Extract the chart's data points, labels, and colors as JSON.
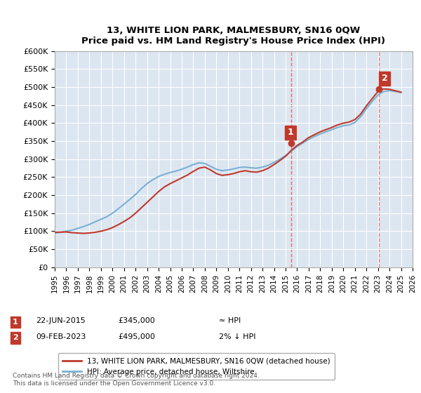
{
  "title": "13, WHITE LION PARK, MALMESBURY, SN16 0QW",
  "subtitle": "Price paid vs. HM Land Registry's House Price Index (HPI)",
  "background_color": "#dce6f1",
  "plot_bg_color": "#dce6f1",
  "ylabel_ticks": [
    "£0",
    "£50K",
    "£100K",
    "£150K",
    "£200K",
    "£250K",
    "£300K",
    "£350K",
    "£400K",
    "£450K",
    "£500K",
    "£550K",
    "£600K"
  ],
  "ytick_values": [
    0,
    50000,
    100000,
    150000,
    200000,
    250000,
    300000,
    350000,
    400000,
    450000,
    500000,
    550000,
    600000
  ],
  "ylim": [
    0,
    600000
  ],
  "xlim_start": 1995,
  "xlim_end": 2026,
  "xtick_years": [
    1995,
    1996,
    1997,
    1998,
    1999,
    2000,
    2001,
    2002,
    2003,
    2004,
    2005,
    2006,
    2007,
    2008,
    2009,
    2010,
    2011,
    2012,
    2013,
    2014,
    2015,
    2016,
    2017,
    2018,
    2019,
    2020,
    2021,
    2022,
    2023,
    2024,
    2025,
    2026
  ],
  "hpi_color": "#7ab0d4",
  "price_color": "#c0392b",
  "marker_color": "#c0392b",
  "vline_color": "#e74c3c",
  "annotation_box_color": "#c0392b",
  "legend_box_color": "#ffffff",
  "footnote": "Contains HM Land Registry data © Crown copyright and database right 2024.\nThis data is licensed under the Open Government Licence v3.0.",
  "legend_line1": "13, WHITE LION PARK, MALMESBURY, SN16 0QW (detached house)",
  "legend_line2": "HPI: Average price, detached house, Wiltshire",
  "annotation1_label": "1",
  "annotation1_date": "22-JUN-2015",
  "annotation1_price": "£345,000",
  "annotation1_hpi": "≈ HPI",
  "annotation1_year": 2015.47,
  "annotation1_value": 345000,
  "annotation2_label": "2",
  "annotation2_date": "09-FEB-2023",
  "annotation2_price": "£495,000",
  "annotation2_hpi": "2% ↓ HPI",
  "annotation2_year": 2023.11,
  "annotation2_value": 495000,
  "hpi_x": [
    1995,
    1995.5,
    1996,
    1996.5,
    1997,
    1997.5,
    1998,
    1998.5,
    1999,
    1999.5,
    2000,
    2000.5,
    2001,
    2001.5,
    2002,
    2002.5,
    2003,
    2003.5,
    2004,
    2004.5,
    2005,
    2005.5,
    2006,
    2006.5,
    2007,
    2007.5,
    2008,
    2008.5,
    2009,
    2009.5,
    2010,
    2010.5,
    2011,
    2011.5,
    2012,
    2012.5,
    2013,
    2013.5,
    2014,
    2014.5,
    2015,
    2015.5,
    2016,
    2016.5,
    2017,
    2017.5,
    2018,
    2018.5,
    2019,
    2019.5,
    2020,
    2020.5,
    2021,
    2021.5,
    2022,
    2022.5,
    2023,
    2023.5,
    2024,
    2024.5,
    2025
  ],
  "hpi_y": [
    95000,
    97000,
    100000,
    103000,
    108000,
    113000,
    119000,
    126000,
    133000,
    140000,
    150000,
    162000,
    175000,
    188000,
    202000,
    218000,
    232000,
    243000,
    252000,
    258000,
    263000,
    267000,
    272000,
    278000,
    285000,
    290000,
    288000,
    280000,
    272000,
    268000,
    270000,
    273000,
    277000,
    278000,
    276000,
    275000,
    278000,
    283000,
    291000,
    300000,
    310000,
    322000,
    335000,
    345000,
    355000,
    363000,
    370000,
    376000,
    382000,
    388000,
    393000,
    395000,
    402000,
    418000,
    440000,
    460000,
    478000,
    488000,
    490000,
    488000,
    485000
  ],
  "price_x": [
    1995,
    1995.5,
    1996,
    1996.5,
    1997,
    1997.5,
    1998,
    1998.5,
    1999,
    1999.5,
    2000,
    2000.5,
    2001,
    2001.5,
    2002,
    2002.5,
    2003,
    2003.5,
    2004,
    2004.5,
    2005,
    2005.5,
    2006,
    2006.5,
    2007,
    2007.5,
    2008,
    2008.5,
    2009,
    2009.5,
    2010,
    2010.5,
    2011,
    2011.5,
    2012,
    2012.5,
    2013,
    2013.5,
    2014,
    2014.5,
    2015,
    2015.5,
    2016,
    2016.5,
    2017,
    2017.5,
    2018,
    2018.5,
    2019,
    2019.5,
    2020,
    2020.5,
    2021,
    2021.5,
    2022,
    2022.5,
    2023,
    2023.5,
    2024,
    2024.5,
    2025
  ],
  "price_y": [
    97000,
    97500,
    98000,
    96000,
    95000,
    94000,
    95000,
    97000,
    100000,
    104000,
    110000,
    118000,
    127000,
    137000,
    150000,
    165000,
    180000,
    195000,
    210000,
    223000,
    232000,
    240000,
    248000,
    256000,
    266000,
    275000,
    278000,
    270000,
    260000,
    255000,
    257000,
    260000,
    265000,
    268000,
    265000,
    264000,
    268000,
    275000,
    285000,
    296000,
    308000,
    325000,
    338000,
    348000,
    360000,
    368000,
    376000,
    382000,
    388000,
    395000,
    400000,
    403000,
    410000,
    425000,
    448000,
    468000,
    488000,
    495000,
    494000,
    490000,
    486000
  ]
}
